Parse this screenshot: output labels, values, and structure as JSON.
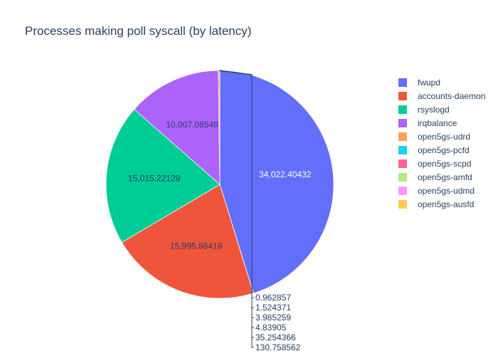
{
  "chart_data": {
    "type": "pie",
    "title": "Processes making poll syscall (by latency)",
    "labels": [
      "fwupd",
      "accounts-daemon",
      "rsyslogd",
      "irqbalance",
      "open5gs-udrd",
      "open5gs-pcfd",
      "open5gs-scpd",
      "open5gs-amfd",
      "open5gs-udmd",
      "open5gs-ausfd"
    ],
    "values": [
      34022.40432,
      15995.88418,
      15015.22129,
      10007.08548,
      130.758562,
      35.254366,
      4.83905,
      3.985259,
      1.524371,
      0.962857
    ],
    "value_labels": [
      "34,022.40432",
      "15,995.88418",
      "15,015.22129",
      "10,007.08548",
      "130.758562",
      "35.254366",
      "4.83905",
      "3.985259",
      "1.524371",
      "0.962857"
    ],
    "colors": [
      "#636efa",
      "#ef553b",
      "#00cc96",
      "#ab63fa",
      "#ffa15a",
      "#19d3f3",
      "#ff6692",
      "#b6e880",
      "#ff97ff",
      "#fecb52"
    ],
    "legend_placement": "right",
    "direction": "clockwise"
  }
}
